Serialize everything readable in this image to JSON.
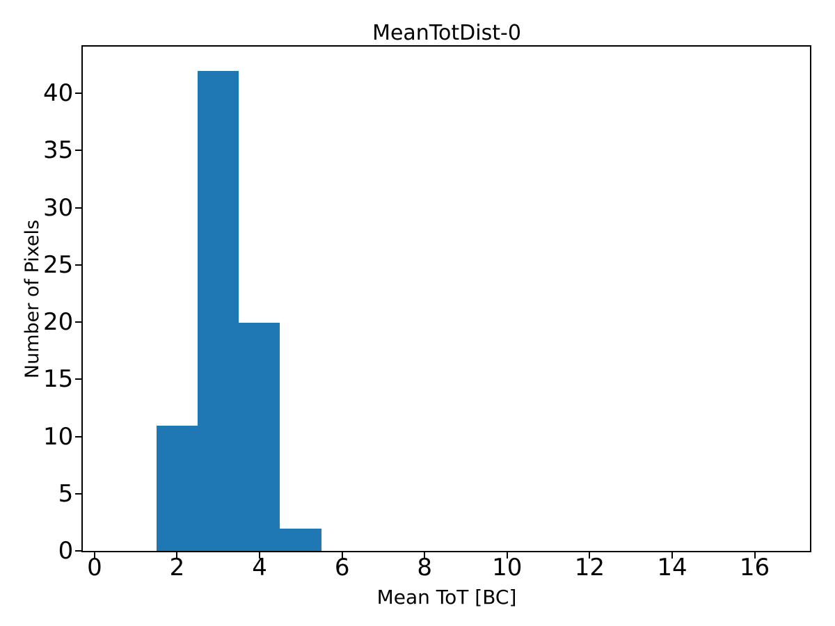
{
  "figure": {
    "title": "MeanTotDist-0",
    "xlabel": "Mean ToT [BC]",
    "ylabel": "Number of Pixels"
  },
  "chart_data": {
    "type": "bar",
    "subtype": "histogram",
    "title": "MeanTotDist-0",
    "xlabel": "Mean ToT [BC]",
    "ylabel": "Number of Pixels",
    "bar_color": "#1f77b4",
    "background_color": "#ffffff",
    "axis_color": "#000000",
    "bins": [
      {
        "x0": 1.5,
        "x1": 2.5,
        "count": 11
      },
      {
        "x0": 2.5,
        "x1": 3.5,
        "count": 42
      },
      {
        "x0": 3.5,
        "x1": 4.5,
        "count": 20
      },
      {
        "x0": 4.5,
        "x1": 5.5,
        "count": 2
      }
    ],
    "xticks": [
      0,
      2,
      4,
      6,
      8,
      10,
      12,
      14,
      16
    ],
    "yticks": [
      0,
      5,
      10,
      15,
      20,
      25,
      30,
      35,
      40
    ],
    "xlim": [
      -0.28,
      17.34
    ],
    "ylim": [
      0,
      44.1
    ],
    "grid": false,
    "legend_position": "none"
  }
}
